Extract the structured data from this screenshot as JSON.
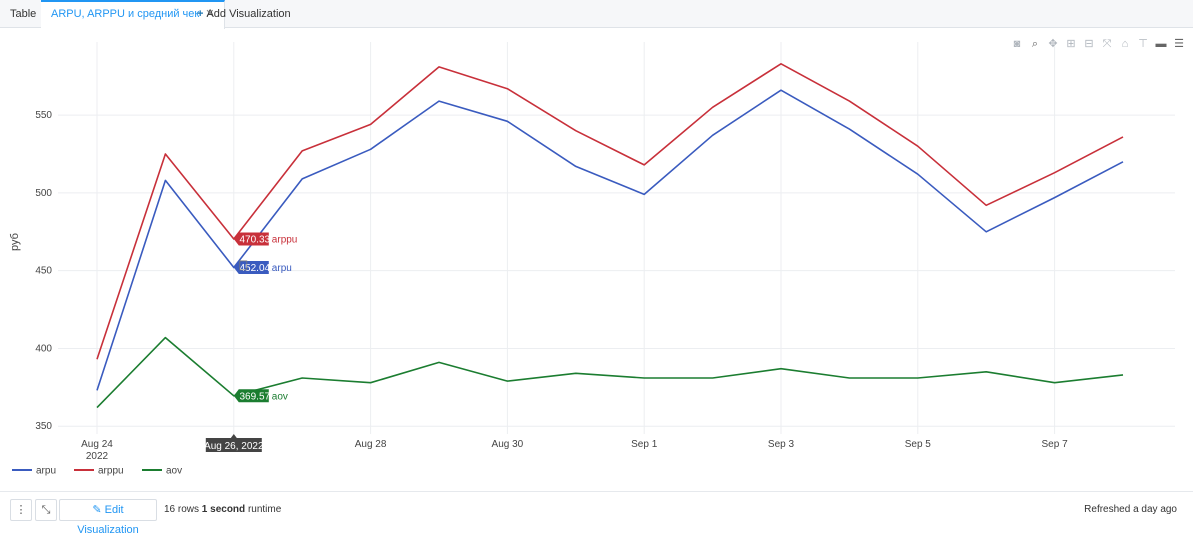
{
  "tabs": {
    "table": "Table",
    "active": "ARPU, ARPPU и средний чек",
    "add": "Add Visualization"
  },
  "modebar_icons": [
    "camera-icon",
    "zoom-icon",
    "pan-icon",
    "zoom-in-icon",
    "zoom-out-icon",
    "autoscale-icon",
    "home-icon",
    "spike-lines-icon",
    "hover-closest-icon",
    "hover-compare-icon"
  ],
  "footer": {
    "edit_label": "Edit Visualization",
    "rows_count": "16 rows",
    "runtime_value": "1 second",
    "runtime_label": "runtime",
    "refreshed": "Refreshed a day ago"
  },
  "hover": {
    "x_label": "Aug 26, 2022",
    "items": [
      {
        "series": "arppu",
        "value": "470.33"
      },
      {
        "series": "arpu",
        "value": "452.04"
      },
      {
        "series": "aov",
        "value": "369.57"
      }
    ]
  },
  "chart_data": {
    "type": "line",
    "ylabel": "руб",
    "xlabel": "",
    "ylim": [
      345,
      597
    ],
    "yticks": [
      350,
      400,
      450,
      500,
      550
    ],
    "x": [
      "2022-08-24",
      "2022-08-25",
      "2022-08-26",
      "2022-08-27",
      "2022-08-28",
      "2022-08-29",
      "2022-08-30",
      "2022-08-31",
      "2022-09-01",
      "2022-09-02",
      "2022-09-03",
      "2022-09-04",
      "2022-09-05",
      "2022-09-06",
      "2022-09-07",
      "2022-09-08"
    ],
    "xticks": [
      {
        "date": "2022-08-24",
        "label": "Aug 24",
        "sublabel": "2022"
      },
      {
        "date": "2022-08-26",
        "label": "Aug 26",
        "sublabel": ""
      },
      {
        "date": "2022-08-28",
        "label": "Aug 28",
        "sublabel": ""
      },
      {
        "date": "2022-08-30",
        "label": "Aug 30",
        "sublabel": ""
      },
      {
        "date": "2022-09-01",
        "label": "Sep 1",
        "sublabel": ""
      },
      {
        "date": "2022-09-03",
        "label": "Sep 3",
        "sublabel": ""
      },
      {
        "date": "2022-09-05",
        "label": "Sep 5",
        "sublabel": ""
      },
      {
        "date": "2022-09-07",
        "label": "Sep 7",
        "sublabel": ""
      }
    ],
    "series": [
      {
        "name": "arpu",
        "color": "#3a5bbf",
        "values": [
          373,
          508,
          452.04,
          509,
          528,
          559,
          546,
          517,
          499,
          537,
          566,
          541,
          512,
          475,
          497,
          520
        ]
      },
      {
        "name": "arppu",
        "color": "#c8303a",
        "values": [
          393,
          525,
          470.33,
          527,
          544,
          581,
          567,
          540,
          518,
          555,
          583,
          559,
          530,
          492,
          513,
          536
        ]
      },
      {
        "name": "aov",
        "color": "#1b7d30",
        "values": [
          362,
          407,
          369.57,
          381,
          378,
          391,
          379,
          384,
          381,
          381,
          387,
          381,
          381,
          385,
          378,
          383
        ]
      }
    ],
    "grid": true,
    "legend_position": "bottom-left"
  }
}
